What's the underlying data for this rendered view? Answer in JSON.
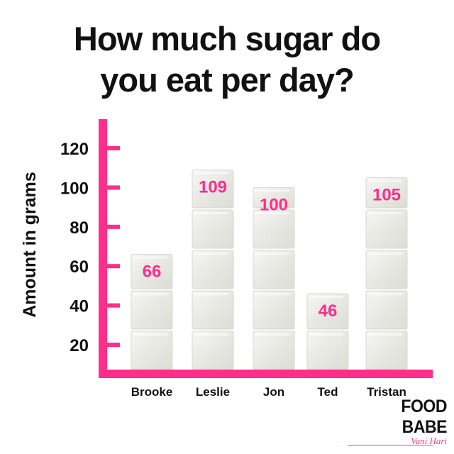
{
  "title_lines": [
    "How much sugar do",
    "you eat per day?"
  ],
  "brand": {
    "name": "FOOD BABE",
    "subtitle": "Vani Hari"
  },
  "colors": {
    "axis": "#ff2e8a",
    "value_label": "#ff2e8a",
    "text": "#111111",
    "cube_face": "#ecece8",
    "cube_edge": "#d7d7d2"
  },
  "chart_data": {
    "type": "bar",
    "title": "How much sugar do you eat per day?",
    "xlabel": "",
    "ylabel": "Amount in grams",
    "categories": [
      "Brooke",
      "Leslie",
      "Jon",
      "Ted",
      "Tristan"
    ],
    "values": [
      66,
      109,
      100,
      46,
      105
    ],
    "value_labels": [
      "66",
      "109",
      "100",
      "46",
      "105"
    ],
    "yticks": [
      20,
      40,
      60,
      80,
      100,
      120
    ],
    "ytick_labels": [
      "20",
      "40",
      "60",
      "80",
      "100",
      "120"
    ],
    "ylim": [
      0,
      130
    ],
    "grid": false,
    "legend": "none",
    "bar_style": "stacked sugar cubes (one cube per 20 g)"
  }
}
